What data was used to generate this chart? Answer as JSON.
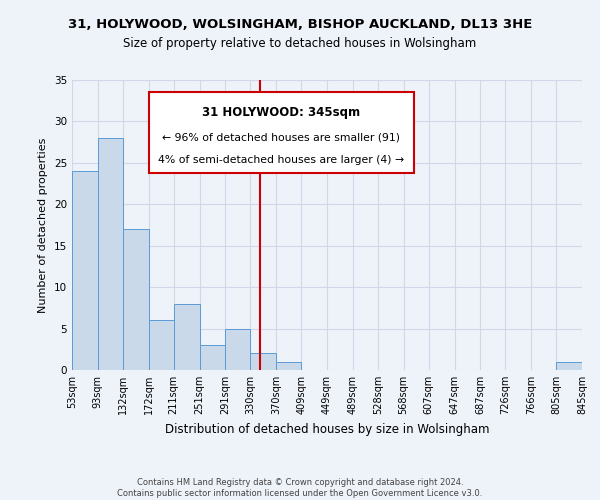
{
  "title": "31, HOLYWOOD, WOLSINGHAM, BISHOP AUCKLAND, DL13 3HE",
  "subtitle": "Size of property relative to detached houses in Wolsingham",
  "xlabel": "Distribution of detached houses by size in Wolsingham",
  "ylabel": "Number of detached properties",
  "bin_edges": [
    53,
    93,
    132,
    172,
    211,
    251,
    291,
    330,
    370,
    409,
    449,
    489,
    528,
    568,
    607,
    647,
    687,
    726,
    766,
    805,
    845
  ],
  "bin_labels": [
    "53sqm",
    "93sqm",
    "132sqm",
    "172sqm",
    "211sqm",
    "251sqm",
    "291sqm",
    "330sqm",
    "370sqm",
    "409sqm",
    "449sqm",
    "489sqm",
    "528sqm",
    "568sqm",
    "607sqm",
    "647sqm",
    "687sqm",
    "726sqm",
    "766sqm",
    "805sqm",
    "845sqm"
  ],
  "counts": [
    24,
    28,
    17,
    6,
    8,
    3,
    5,
    2,
    1,
    0,
    0,
    0,
    0,
    0,
    0,
    0,
    0,
    0,
    0,
    1,
    0
  ],
  "bar_color": "#c9d9ea",
  "bar_edge_color": "#5b9bd5",
  "vline_x": 345,
  "vline_color": "#cc0000",
  "ylim": [
    0,
    35
  ],
  "yticks": [
    0,
    5,
    10,
    15,
    20,
    25,
    30,
    35
  ],
  "annotation_title": "31 HOLYWOOD: 345sqm",
  "annotation_line1": "← 96% of detached houses are smaller (91)",
  "annotation_line2": "4% of semi-detached houses are larger (4) →",
  "annotation_box_color": "#ffffff",
  "annotation_box_edge": "#cc0000",
  "grid_color": "#d0d8e8",
  "background_color": "#eef2f9",
  "footer1": "Contains HM Land Registry data © Crown copyright and database right 2024.",
  "footer2": "Contains public sector information licensed under the Open Government Licence v3.0."
}
